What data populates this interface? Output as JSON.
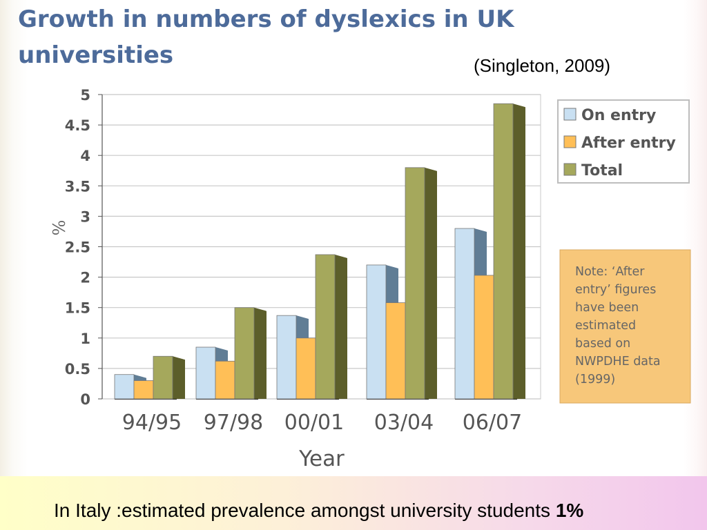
{
  "slide": {
    "title": "Growth in numbers of dyslexics in UK universities",
    "citation": "(Singleton, 2009)",
    "footer_text": "In Italy :estimated prevalence amongst university students ",
    "footer_bold": "1%"
  },
  "colors": {
    "on_entry": "#c9e0f2",
    "after_entry": "#ffbf57",
    "total": "#a5a85c",
    "title": "#4d6b9a",
    "note_bg": "#f7c77a"
  },
  "chart_data": {
    "type": "bar",
    "title": "",
    "xlabel": "Year",
    "ylabel": "%",
    "ylim": [
      0,
      5
    ],
    "yticks": [
      "0",
      "0.5",
      "1",
      "1.5",
      "2",
      "2.5",
      "3",
      "3.5",
      "4",
      "4.5",
      "5"
    ],
    "grid": true,
    "legend_position": "top-right",
    "categories": [
      "94/95",
      "97/98",
      "00/01",
      "03/04",
      "06/07"
    ],
    "series": [
      {
        "name": "On entry",
        "values": [
          0.4,
          0.85,
          1.37,
          2.2,
          2.8
        ]
      },
      {
        "name": "After entry",
        "values": [
          0.3,
          0.62,
          1.0,
          1.58,
          2.03
        ]
      },
      {
        "name": "Total",
        "values": [
          0.7,
          1.5,
          2.37,
          3.8,
          4.85
        ]
      }
    ],
    "annotation": {
      "lines": [
        "Note: ‘After",
        "entry’ figures",
        "have been",
        "estimated",
        "based on",
        "NWPDHE data",
        "(1999)"
      ]
    }
  }
}
